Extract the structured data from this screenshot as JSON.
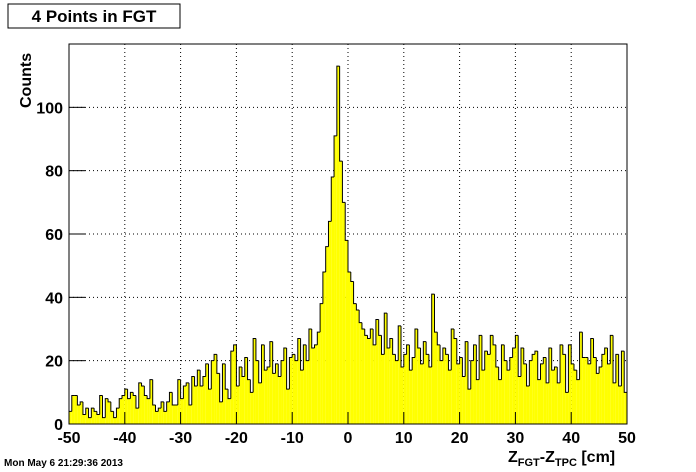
{
  "chart_data": {
    "type": "histogram",
    "title": "4 Points in FGT",
    "ylabel": "Counts",
    "xlabel_parts": [
      "Z",
      "FGT",
      "-Z",
      "TPC",
      " [cm]"
    ],
    "timestamp": "Mon May  6 21:29:36 2013",
    "color": "#ffff00",
    "grid": true,
    "xlim": [
      -50,
      50
    ],
    "ylim": [
      0,
      120
    ],
    "xticks": [
      -50,
      -40,
      -30,
      -20,
      -10,
      0,
      10,
      20,
      30,
      40,
      50
    ],
    "yticks": [
      0,
      20,
      40,
      60,
      80,
      100
    ],
    "bins": [
      -50,
      -49.5,
      -49,
      -48.5,
      -48,
      -47.5,
      -47,
      -46.5,
      -46,
      -45.5,
      -45,
      -44.5,
      -44,
      -43.5,
      -43,
      -42.5,
      -42,
      -41.5,
      -41,
      -40.5,
      -40,
      -39.5,
      -39,
      -38.5,
      -38,
      -37.5,
      -37,
      -36.5,
      -36,
      -35.5,
      -35,
      -34.5,
      -34,
      -33.5,
      -33,
      -32.5,
      -32,
      -31.5,
      -31,
      -30.5,
      -30,
      -29.5,
      -29,
      -28.5,
      -28,
      -27.5,
      -27,
      -26.5,
      -26,
      -25.5,
      -25,
      -24.5,
      -24,
      -23.5,
      -23,
      -22.5,
      -22,
      -21.5,
      -21,
      -20.5,
      -20,
      -19.5,
      -19,
      -18.5,
      -18,
      -17.5,
      -17,
      -16.5,
      -16,
      -15.5,
      -15,
      -14.5,
      -14,
      -13.5,
      -13,
      -12.5,
      -12,
      -11.5,
      -11,
      -10.5,
      -10,
      -9.5,
      -9,
      -8.5,
      -8,
      -7.5,
      -7,
      -6.5,
      -6,
      -5.5,
      -5,
      -4.5,
      -4,
      -3.5,
      -3,
      -2.5,
      -2,
      -1.5,
      -1,
      -0.5,
      0,
      0.5,
      1,
      1.5,
      2,
      2.5,
      3,
      3.5,
      4,
      4.5,
      5,
      5.5,
      6,
      6.5,
      7,
      7.5,
      8,
      8.5,
      9,
      9.5,
      10,
      10.5,
      11,
      11.5,
      12,
      12.5,
      13,
      13.5,
      14,
      14.5,
      15,
      15.5,
      16,
      16.5,
      17,
      17.5,
      18,
      18.5,
      19,
      19.5,
      20,
      20.5,
      21,
      21.5,
      22,
      22.5,
      23,
      23.5,
      24,
      24.5,
      25,
      25.5,
      26,
      26.5,
      27,
      27.5,
      28,
      28.5,
      29,
      29.5,
      30,
      30.5,
      31,
      31.5,
      32,
      32.5,
      33,
      33.5,
      34,
      34.5,
      35,
      35.5,
      36,
      36.5,
      37,
      37.5,
      38,
      38.5,
      39,
      39.5,
      40,
      40.5,
      41,
      41.5,
      42,
      42.5,
      43,
      43.5,
      44,
      44.5,
      45,
      45.5,
      46,
      46.5,
      47,
      47.5,
      48,
      48.5,
      49,
      49.5,
      50
    ],
    "values": [
      4,
      9,
      9,
      6,
      7,
      3,
      5,
      2,
      5,
      4,
      3,
      9,
      2,
      8,
      7,
      4,
      2,
      5,
      8,
      9,
      11,
      8,
      10,
      9,
      5,
      13,
      12,
      9,
      8,
      14,
      6,
      4,
      5,
      7,
      4,
      7,
      10,
      6,
      6,
      14,
      8,
      12,
      13,
      6,
      15,
      12,
      17,
      12,
      15,
      19,
      11,
      20,
      22,
      16,
      7,
      19,
      11,
      8,
      23,
      25,
      12,
      18,
      15,
      21,
      14,
      10,
      27,
      20,
      13,
      25,
      17,
      18,
      26,
      16,
      19,
      15,
      20,
      24,
      11,
      21,
      22,
      20,
      27,
      17,
      25,
      20,
      30,
      24,
      25,
      29,
      38,
      48,
      56,
      64,
      78,
      91,
      113,
      83,
      70,
      58,
      48,
      45,
      38,
      36,
      32,
      30,
      28,
      27,
      30,
      25,
      33,
      28,
      22,
      35,
      24,
      27,
      22,
      20,
      31,
      18,
      22,
      25,
      17,
      21,
      30,
      24,
      19,
      26,
      22,
      18,
      41,
      29,
      25,
      20,
      24,
      22,
      17,
      30,
      27,
      19,
      21,
      15,
      26,
      11,
      20,
      25,
      14,
      28,
      17,
      23,
      22,
      28,
      25,
      18,
      14,
      25,
      20,
      17,
      21,
      24,
      28,
      15,
      24,
      19,
      12,
      20,
      22,
      23,
      14,
      19,
      21,
      13,
      24,
      17,
      18,
      13,
      25,
      22,
      10,
      25,
      19,
      17,
      14,
      29,
      21,
      21,
      19,
      27,
      21,
      16,
      18,
      22,
      24,
      19,
      28,
      13,
      22,
      12,
      23,
      10
    ]
  }
}
